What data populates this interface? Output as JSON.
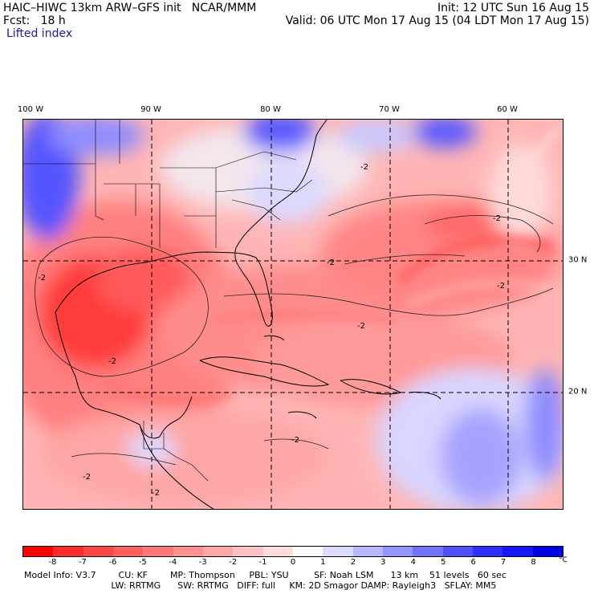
{
  "header": {
    "title": "HAIC–HIWC 13km ARW–GFS init   NCAR/MMM",
    "init": "Init: 12 UTC Sun 16 Aug 15",
    "fcst_label": "Fcst:   18 h",
    "valid": "Valid: 06 UTC Mon 17 Aug 15 (04 LDT Mon 17 Aug 15)",
    "field": "Lifted index"
  },
  "map": {
    "lon_labels": [
      "100 W",
      "90 W",
      "80 W",
      "70 W",
      "60 W"
    ],
    "lat_labels": [
      "30 N",
      "20 N"
    ],
    "contour_labels": [
      "-2",
      "-2",
      "-2",
      "-2",
      "-2",
      "-2",
      "-2",
      "-2",
      "-2",
      "-2"
    ],
    "gridlines": "dashed"
  },
  "colorbar": {
    "ticks": [
      "-8",
      "-7",
      "-6",
      "-5",
      "-4",
      "-3",
      "-2",
      "-1",
      "0",
      "1",
      "2",
      "3",
      "4",
      "5",
      "6",
      "7",
      "8"
    ],
    "unit": "°C",
    "colors": [
      "#ff0000",
      "#ff2a2a",
      "#ff4545",
      "#ff5f5f",
      "#ff7878",
      "#ff9090",
      "#ffa8a8",
      "#ffc2c2",
      "#ffdcdc",
      "#ffffff",
      "#dcdcff",
      "#b8b8ff",
      "#9595ff",
      "#7272ff",
      "#5050ff",
      "#2e2eff",
      "#1515ff",
      "#0000e6"
    ]
  },
  "footer": {
    "line1": "Model Info: V3.7        CU: KF        MP: Thompson     PBL: YSU         SF: Noah LSM      13 km    51 levels   60 sec",
    "line2": "                               LW: RRTMG      SW: RRTMG   DIFF: full     KM: 2D Smagor DAMP: Rayleigh3   SFLAY: MM5"
  }
}
